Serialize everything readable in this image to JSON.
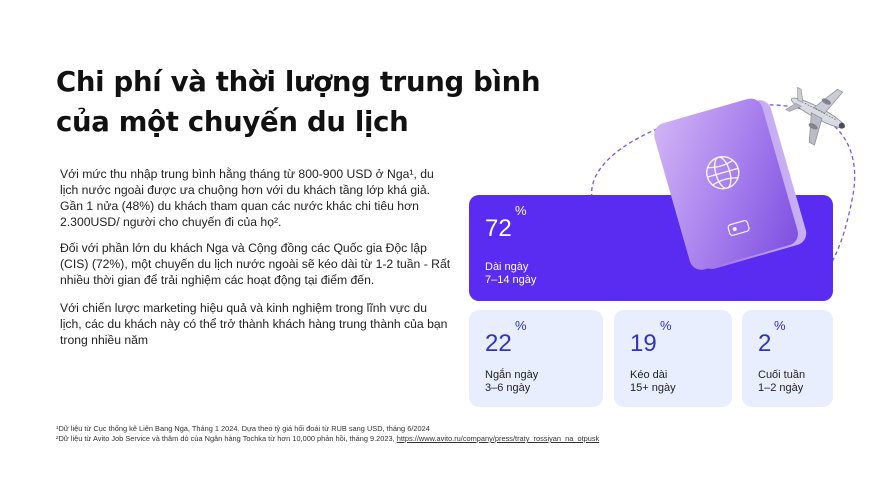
{
  "title": {
    "line1": "Chi phí và thời lượng trung bình",
    "line2": "của một chuyến du lịch"
  },
  "body": {
    "p1": "Với mức thu nhập trung bình hằng tháng từ 800-900 USD ở Nga¹, du lịch nước ngoài được ưa chuộng hơn với du khách tầng lớp khá giả. Gần 1 nửa (48%) du khách tham quan các nước khác chi tiêu hơn 2.300USD/ người cho chuyến đi của họ².",
    "p2": "Đối với phần lớn du khách Nga và Cộng đồng các Quốc gia Độc lập (CIS) (72%), một chuyến du lịch nước ngoài sẽ kéo dài từ 1-2 tuần - Rất nhiều thời gian để trải nghiệm các hoạt động tại điểm đến.",
    "p3": "Với chiến lược marketing hiệu quả và kinh nghiệm trong lĩnh vực du lịch, các du khách này có thể trở thành khách hàng trung thành của bạn trong nhiều năm"
  },
  "stats": [
    {
      "value": "72",
      "unit": "%",
      "label": "Dài ngày",
      "range": "7–14 ngày"
    },
    {
      "value": "22",
      "unit": "%",
      "label": "Ngắn ngày",
      "range": "3–6 ngày"
    },
    {
      "value": "19",
      "unit": "%",
      "label": "Kéo dài",
      "range": "15+ ngày"
    },
    {
      "value": "2",
      "unit": "%",
      "label": "Cuối tuần",
      "range": "1–2 ngày"
    }
  ],
  "footnotes": {
    "fn1": "¹Dữ liệu từ Cục thống kê Liên Bang Nga, Tháng 1 2024. Dựa theo tỷ giá hối đoái từ RUB sang USD, tháng 6/2024",
    "fn2": "²Dữ liệu từ Avito Job Service và thăm dò của Ngân hàng Tochka từ hơn 10,000 phản hồi, tháng 9.2023, ",
    "fn2_link": "https://www.avito.ru/company/press/traty_rossiyan_na_otpusk"
  },
  "icons": {
    "passport": "passport-icon",
    "airplane": "airplane-icon"
  },
  "colors": {
    "accent": "#5a2bf0",
    "card_light": "#e9eefe",
    "stat_text": "#2f34b8",
    "passport_top": "#c6a6f2",
    "passport_bottom": "#8a5ae8"
  }
}
